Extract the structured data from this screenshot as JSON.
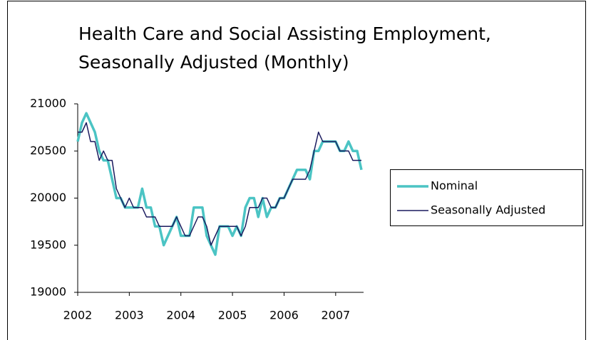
{
  "chart_data": {
    "type": "line",
    "title": [
      "Health Care and Social Assisting Employment,",
      "Seasonally Adjusted (Monthly)"
    ],
    "x": [
      2002,
      2002.083,
      2002.167,
      2002.25,
      2002.333,
      2002.417,
      2002.5,
      2002.583,
      2002.667,
      2002.75,
      2002.833,
      2002.917,
      2003,
      2003.083,
      2003.167,
      2003.25,
      2003.333,
      2003.417,
      2003.5,
      2003.583,
      2003.667,
      2003.75,
      2003.833,
      2003.917,
      2004,
      2004.083,
      2004.167,
      2004.25,
      2004.333,
      2004.417,
      2004.5,
      2004.583,
      2004.667,
      2004.75,
      2004.833,
      2004.917,
      2005,
      2005.083,
      2005.167,
      2005.25,
      2005.333,
      2005.417,
      2005.5,
      2005.583,
      2005.667,
      2005.75,
      2005.833,
      2005.917,
      2006,
      2006.083,
      2006.167,
      2006.25,
      2006.333,
      2006.417,
      2006.5,
      2006.583,
      2006.667,
      2006.75,
      2006.833,
      2006.917,
      2007,
      2007.083,
      2007.167,
      2007.25,
      2007.333,
      2007.417,
      2007.5
    ],
    "series": [
      {
        "name": "Nominal",
        "color": "#4bc4c4",
        "width": 3.5,
        "values": [
          20600,
          20800,
          20900,
          20800,
          20700,
          20500,
          20400,
          20400,
          20200,
          20000,
          20000,
          19900,
          19900,
          19900,
          19900,
          20100,
          19900,
          19900,
          19700,
          19700,
          19500,
          19600,
          19700,
          19800,
          19600,
          19600,
          19600,
          19900,
          19900,
          19900,
          19600,
          19500,
          19400,
          19700,
          19700,
          19700,
          19600,
          19700,
          19600,
          19900,
          20000,
          20000,
          19800,
          20000,
          19800,
          19900,
          19900,
          20000,
          20000,
          20100,
          20200,
          20300,
          20300,
          20300,
          20200,
          20500,
          20500,
          20600,
          20600,
          20600,
          20600,
          20500,
          20500,
          20600,
          20500,
          20500,
          20300
        ]
      },
      {
        "name": "Seasonally Adjusted",
        "color": "#1a1a5e",
        "width": 1.5,
        "values": [
          20700,
          20700,
          20800,
          20600,
          20600,
          20400,
          20500,
          20400,
          20400,
          20100,
          20000,
          19900,
          20000,
          19900,
          19900,
          19900,
          19800,
          19800,
          19800,
          19700,
          19700,
          19700,
          19700,
          19800,
          19700,
          19600,
          19600,
          19700,
          19800,
          19800,
          19700,
          19500,
          19600,
          19700,
          19700,
          19700,
          19700,
          19700,
          19600,
          19700,
          19900,
          19900,
          19900,
          20000,
          20000,
          19900,
          19900,
          20000,
          20000,
          20100,
          20200,
          20200,
          20200,
          20200,
          20300,
          20500,
          20700,
          20600,
          20600,
          20600,
          20600,
          20500,
          20500,
          20500,
          20400,
          20400,
          20400
        ]
      }
    ],
    "xlim": [
      2002,
      2007.5
    ],
    "xticks": [
      2002,
      2003,
      2004,
      2005,
      2006,
      2007
    ],
    "ylim": [
      19000,
      21000
    ],
    "yticks": [
      19000,
      19500,
      20000,
      20500,
      21000
    ],
    "grid": false,
    "legend": "right"
  }
}
